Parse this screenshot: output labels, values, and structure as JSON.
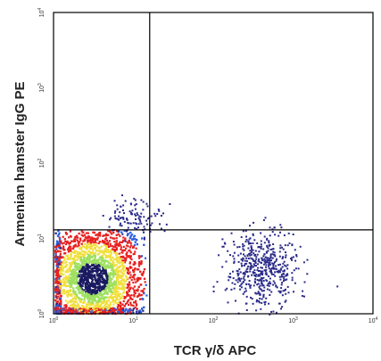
{
  "chart_data": {
    "type": "scatter",
    "subtype": "flow-cytometry-density-plot",
    "xlabel": "TCR γ/δ APC",
    "ylabel": "Armenian hamster IgG PE",
    "x_scale": "log",
    "y_scale": "log",
    "xlim": [
      1,
      10000
    ],
    "ylim": [
      1,
      10000
    ],
    "x_ticks": [
      {
        "value": 1,
        "base": "10",
        "exp": "0"
      },
      {
        "value": 10,
        "base": "10",
        "exp": "1"
      },
      {
        "value": 100,
        "base": "10",
        "exp": "2"
      },
      {
        "value": 1000,
        "base": "10",
        "exp": "3"
      },
      {
        "value": 10000,
        "base": "10",
        "exp": "4"
      }
    ],
    "y_ticks": [
      {
        "value": 1,
        "base": "10",
        "exp": "0"
      },
      {
        "value": 10,
        "base": "10",
        "exp": "1"
      },
      {
        "value": 100,
        "base": "10",
        "exp": "2"
      },
      {
        "value": 1000,
        "base": "10",
        "exp": "3"
      },
      {
        "value": 10000,
        "base": "10",
        "exp": "4"
      }
    ],
    "quadrant_gate": {
      "x": 16,
      "y": 13
    },
    "populations": [
      {
        "center": [
          3,
          3
        ],
        "spread": [
          0.35,
          0.38
        ],
        "density": "very high",
        "colormap": "density"
      },
      {
        "center": [
          400,
          4
        ],
        "spread": [
          0.22,
          0.25
        ],
        "density": "low",
        "color": "#2a2a8a"
      },
      {
        "center": [
          10,
          20
        ],
        "spread": [
          0.18,
          0.12
        ],
        "density": "sparse",
        "color": "#2a2a8a"
      }
    ],
    "grid": false,
    "legend": "none",
    "colors": {
      "low": "#2a2a8a",
      "mid_low": "#3060e0",
      "mid": "#9ee060",
      "mid_high": "#f0e040",
      "high": "#e82020",
      "core": "#1a1a60",
      "gate_line": "#000000",
      "frame": "#000000"
    }
  }
}
